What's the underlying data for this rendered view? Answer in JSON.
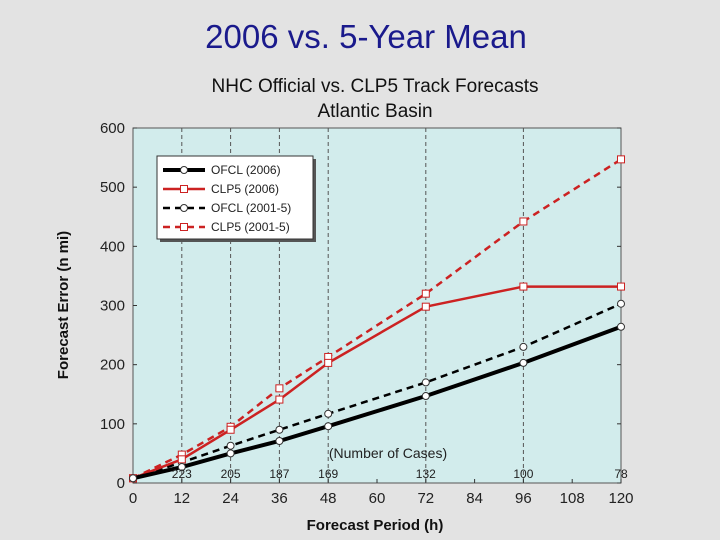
{
  "slide": {
    "title": "2006 vs. 5-Year Mean"
  },
  "colors": {
    "plot_bg": "#d2ecec",
    "ofcl": "#000000",
    "clp5": "#cc2222",
    "title": "#1a1a8c"
  },
  "chart_data": {
    "type": "line",
    "title": "NHC Official vs. CLP5 Track Forecasts",
    "subtitle": "Atlantic Basin",
    "xlabel": "Forecast Period (h)",
    "ylabel": "Forecast Error (n mi)",
    "xlim": [
      0,
      120
    ],
    "ylim": [
      0,
      600
    ],
    "x_ticks": [
      0,
      12,
      24,
      36,
      48,
      60,
      72,
      84,
      96,
      108,
      120
    ],
    "y_ticks": [
      0,
      100,
      200,
      300,
      400,
      500,
      600
    ],
    "vertical_gridlines_at": [
      12,
      24,
      36,
      48,
      72,
      96,
      120
    ],
    "legend": {
      "placement": "top-left"
    },
    "cases_label": "(Number of Cases)",
    "cases": [
      {
        "x": 12,
        "n": "223"
      },
      {
        "x": 24,
        "n": "205"
      },
      {
        "x": 36,
        "n": "187"
      },
      {
        "x": 48,
        "n": "169"
      },
      {
        "x": 72,
        "n": "132"
      },
      {
        "x": 96,
        "n": "100"
      },
      {
        "x": 120,
        "n": "78"
      }
    ],
    "x": [
      0,
      12,
      24,
      36,
      48,
      72,
      96,
      120
    ],
    "series": [
      {
        "name": "OFCL (2006)",
        "color": "#000000",
        "dash": "solid",
        "weight": "thick",
        "marker": "circle",
        "values": [
          8,
          27,
          50,
          71,
          96,
          147,
          203,
          264
        ]
      },
      {
        "name": "CLP5 (2006)",
        "color": "#cc2222",
        "dash": "solid",
        "weight": "normal",
        "marker": "square",
        "values": [
          8,
          40,
          90,
          141,
          203,
          298,
          332,
          332
        ]
      },
      {
        "name": "OFCL (2001-5)",
        "color": "#000000",
        "dash": "dashed",
        "weight": "normal",
        "marker": "circle",
        "values": [
          8,
          35,
          63,
          90,
          117,
          170,
          230,
          303
        ]
      },
      {
        "name": "CLP5 (2001-5)",
        "color": "#cc2222",
        "dash": "dashed",
        "weight": "normal",
        "marker": "square",
        "values": [
          8,
          48,
          95,
          160,
          213,
          320,
          442,
          547
        ]
      }
    ]
  }
}
